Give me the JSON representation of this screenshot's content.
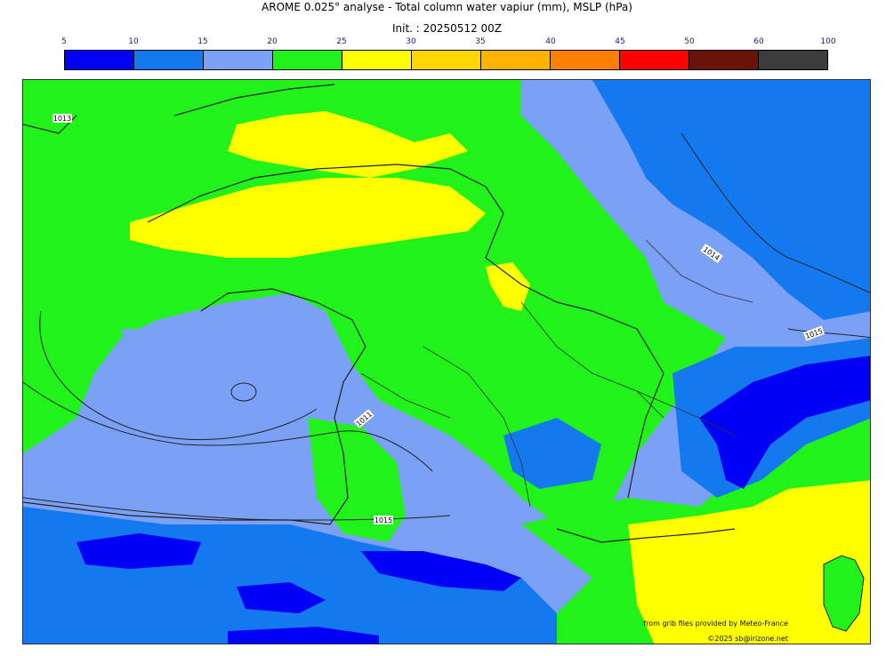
{
  "header": {
    "title": "AROME 0.025° analyse - Total column water vapiur (mm), MSLP (hPa)",
    "init": "Init. : 20250512 00Z"
  },
  "colorbar": {
    "ticks": [
      "5",
      "10",
      "15",
      "20",
      "25",
      "30",
      "35",
      "40",
      "45",
      "50",
      "60",
      "100"
    ],
    "colors": [
      "#0000f5",
      "#1479ef",
      "#7ba1f7",
      "#21f21a",
      "#ffff00",
      "#ffd700",
      "#ffb300",
      "#ff7f00",
      "#ff0000",
      "#6b1209",
      "#3c3c3c"
    ]
  },
  "map": {
    "isobars": [
      "1013",
      "1014",
      "1015",
      "1011",
      "1015",
      "1014"
    ]
  },
  "footer": {
    "source": "from grib files provided by Meteo-France",
    "copyright": "©2025 sb@irizone.net"
  }
}
